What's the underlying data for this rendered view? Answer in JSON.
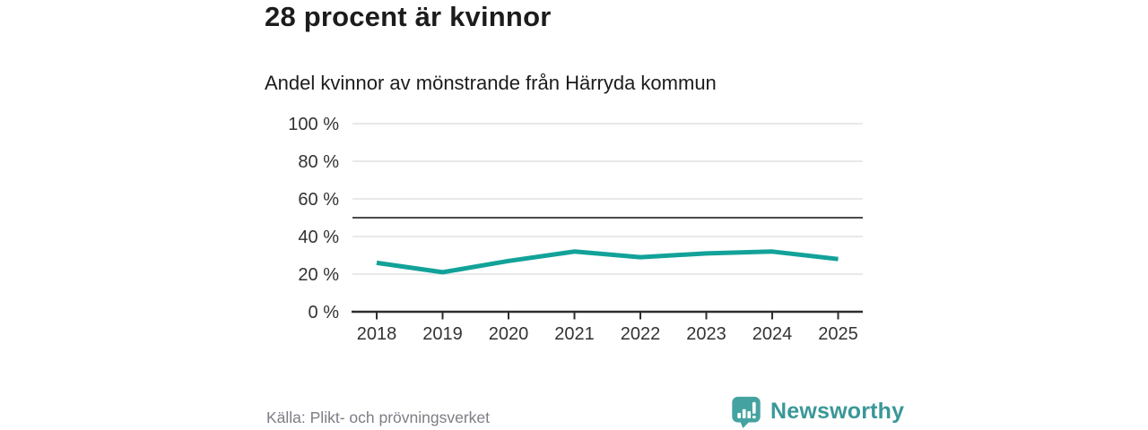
{
  "header": {
    "title": "28 procent är kvinnor",
    "subtitle": "Andel kvinnor av mönstrande från Härryda kommun"
  },
  "chart_data": {
    "type": "line",
    "title": "28 procent är kvinnor",
    "subtitle": "Andel kvinnor av mönstrande från Härryda kommun",
    "categories": [
      "2018",
      "2019",
      "2020",
      "2021",
      "2022",
      "2023",
      "2024",
      "2025"
    ],
    "series": [
      {
        "name": "Andel kvinnor av mönstrande från Härryda kommun",
        "values": [
          26,
          21,
          27,
          32,
          29,
          31,
          32,
          28
        ]
      }
    ],
    "ylim": [
      0,
      100
    ],
    "yticks": [
      0,
      20,
      40,
      60,
      80,
      100
    ],
    "ytick_suffix": " %",
    "xlabel": "",
    "ylabel": "",
    "grid": "on",
    "legend": "off",
    "reference_line": 50
  },
  "footer": {
    "source": "Källa: Plikt- och prövningsverket",
    "brand": "Newsworthy"
  },
  "colors": {
    "line": "#12a299",
    "grid": "#e2e2e2",
    "axis": "#2e2e2e",
    "reference": "#4a4a4a",
    "text_dark": "#1c1c1c",
    "axis_text": "#333333",
    "source_text": "#7d7d86",
    "brand_teal": "#3a9798",
    "logo_bubble": "#44a3a0"
  }
}
